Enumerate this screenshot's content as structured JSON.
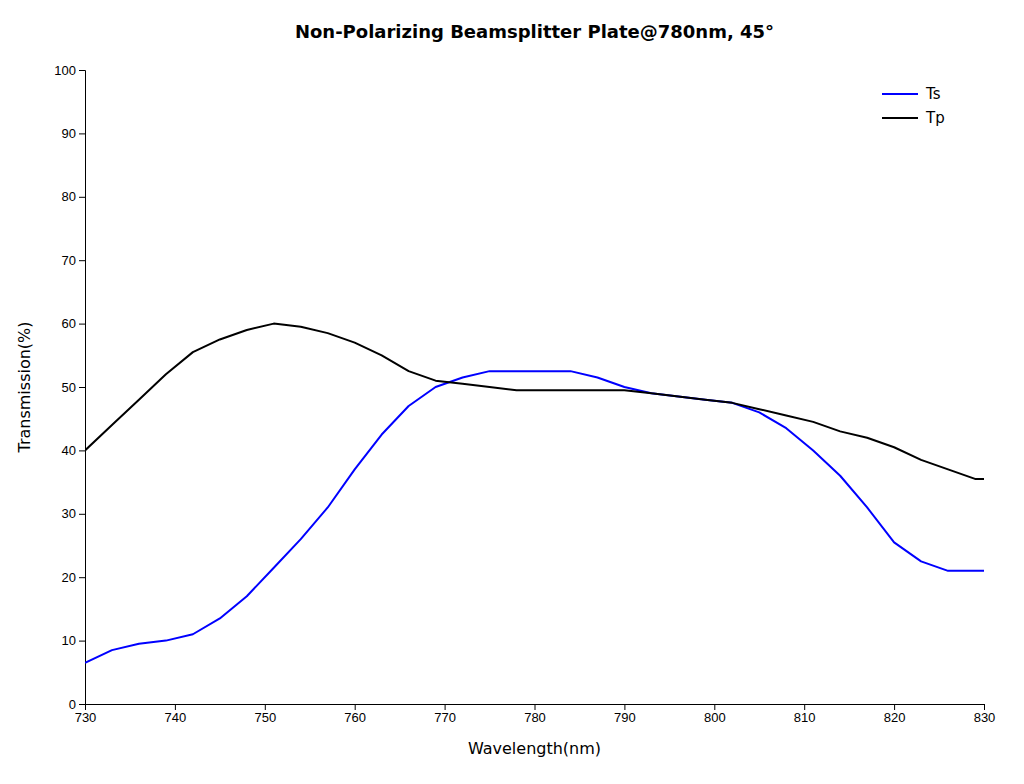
{
  "chart_data": {
    "type": "line",
    "title": "Non-Polarizing Beamsplitter Plate@780nm, 45°",
    "xlabel": "Wavelength(nm)",
    "ylabel": "Transmission(%)",
    "xlim": [
      730,
      830
    ],
    "ylim": [
      0,
      100
    ],
    "xticks": [
      730,
      740,
      750,
      760,
      770,
      780,
      790,
      800,
      810,
      820,
      830
    ],
    "yticks": [
      0,
      10,
      20,
      30,
      40,
      50,
      60,
      70,
      80,
      90,
      100
    ],
    "x": [
      730,
      733,
      736,
      739,
      742,
      745,
      748,
      751,
      754,
      757,
      760,
      763,
      766,
      769,
      772,
      775,
      778,
      781,
      784,
      787,
      790,
      793,
      796,
      799,
      802,
      805,
      808,
      811,
      814,
      817,
      820,
      823,
      826,
      829,
      830
    ],
    "series": [
      {
        "name": "Ts",
        "color": "#0000ff",
        "values": [
          6.5,
          8.5,
          9.5,
          10.0,
          11.0,
          13.5,
          17.0,
          21.5,
          26.0,
          31.0,
          37.0,
          42.5,
          47.0,
          50.0,
          51.5,
          52.5,
          52.5,
          52.5,
          52.5,
          51.5,
          50.0,
          49.0,
          48.5,
          48.0,
          47.5,
          46.0,
          43.5,
          40.0,
          36.0,
          31.0,
          25.5,
          22.5,
          21.0,
          21.0,
          21.0
        ]
      },
      {
        "name": "Tp",
        "color": "#000000",
        "values": [
          40.0,
          44.0,
          48.0,
          52.0,
          55.5,
          57.5,
          59.0,
          60.0,
          59.5,
          58.5,
          57.0,
          55.0,
          52.5,
          51.0,
          50.5,
          50.0,
          49.5,
          49.5,
          49.5,
          49.5,
          49.5,
          49.0,
          48.5,
          48.0,
          47.5,
          46.5,
          45.5,
          44.5,
          43.0,
          42.0,
          40.5,
          38.5,
          37.0,
          35.5,
          35.5
        ]
      }
    ],
    "legend": "upper right",
    "grid": false
  }
}
